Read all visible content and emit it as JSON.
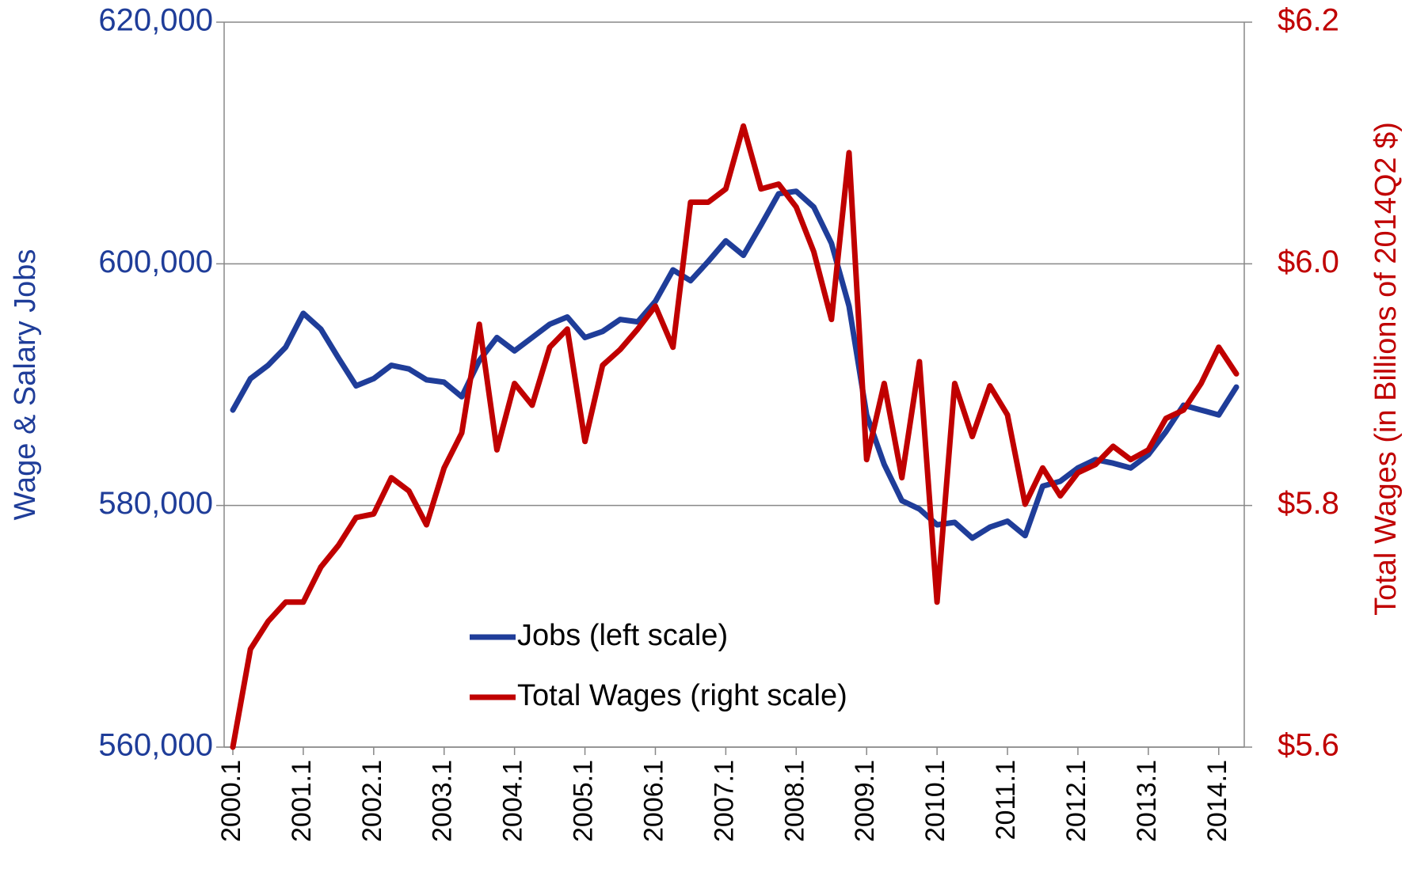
{
  "chart_data": {
    "type": "line",
    "y_label": "Wage & Salary Jobs",
    "y2_label": "Total Wages (in Billions of 2014Q2 $)",
    "categories": [
      "2000.1",
      null,
      null,
      null,
      "2001.1",
      null,
      null,
      null,
      "2002.1",
      null,
      null,
      null,
      "2003.1",
      null,
      null,
      null,
      "2004.1",
      null,
      null,
      null,
      "2005.1",
      null,
      null,
      null,
      "2006.1",
      null,
      null,
      null,
      "2007.1",
      null,
      null,
      null,
      "2008.1",
      null,
      null,
      null,
      "2009.1",
      null,
      null,
      null,
      "2010.1",
      null,
      null,
      null,
      "2011.1",
      null,
      null,
      null,
      "2012.1",
      null,
      null,
      null,
      "2013.1",
      null,
      null,
      null,
      "2014.1",
      null
    ],
    "series": [
      {
        "name": "Jobs (left scale)",
        "color": "#1f3d99",
        "values": [
          587900,
          590500,
          591600,
          593100,
          595900,
          594600,
          592200,
          589900,
          590500,
          591600,
          591300,
          590400,
          590200,
          589000,
          592000,
          593900,
          592800,
          593900,
          595000,
          595600,
          593900,
          594400,
          595400,
          595200,
          596900,
          599500,
          598600,
          600200,
          601900,
          600700,
          603200,
          605800,
          606000,
          604700,
          601700,
          596500,
          587500,
          583400,
          580400,
          579700,
          578400,
          578600,
          577300,
          578200,
          578700,
          577500,
          581600,
          582000,
          583100,
          583800,
          583500,
          583100,
          584200,
          586100,
          588300,
          587900,
          587500,
          589800
        ]
      },
      {
        "name": "Total Wages (right scale)",
        "color": "#c00000",
        "axis": "y2",
        "values": [
          5.6,
          5.681,
          5.704,
          5.72,
          5.72,
          5.749,
          5.767,
          5.79,
          5.793,
          5.823,
          5.812,
          5.784,
          5.831,
          5.86,
          5.95,
          5.846,
          5.901,
          5.883,
          5.931,
          5.946,
          5.853,
          5.916,
          5.929,
          5.946,
          5.965,
          5.931,
          6.051,
          6.051,
          6.062,
          6.114,
          6.062,
          6.066,
          6.047,
          6.01,
          5.954,
          6.092,
          5.838,
          5.901,
          5.823,
          5.919,
          5.72,
          5.901,
          5.857,
          5.899,
          5.875,
          5.801,
          5.831,
          5.808,
          5.827,
          5.834,
          5.849,
          5.838,
          5.846,
          5.872,
          5.879,
          5.901,
          5.931,
          5.909
        ]
      }
    ],
    "ylim": [
      560000,
      620000
    ],
    "yticks": [
      {
        "value": 560000,
        "label": "560,000"
      },
      {
        "value": 580000,
        "label": "580,000"
      },
      {
        "value": 600000,
        "label": "600,000"
      },
      {
        "value": 620000,
        "label": "620,000"
      }
    ],
    "y2lim": [
      5.6,
      6.2
    ],
    "y2ticks": [
      {
        "value": 5.6,
        "label": "$5.6"
      },
      {
        "value": 5.8,
        "label": "$5.8"
      },
      {
        "value": 6.0,
        "label": "$6.0"
      },
      {
        "value": 6.2,
        "label": "$6.2"
      }
    ],
    "y_color": "#1f3d99",
    "y2_color": "#c00000",
    "grid": true,
    "legend": "bottom"
  }
}
